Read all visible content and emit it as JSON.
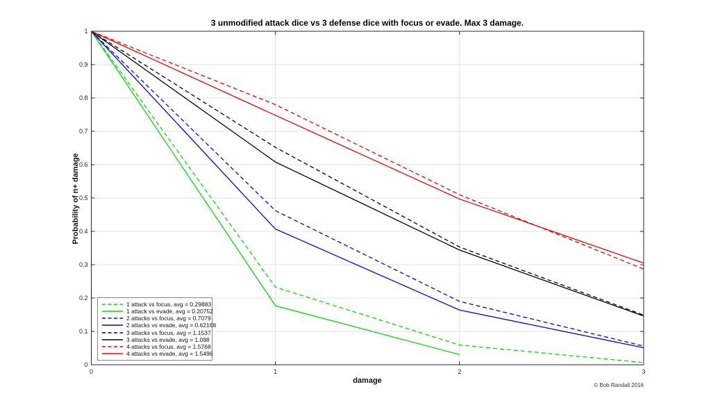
{
  "figure": {
    "copyright": "© Bob Randall 2016",
    "background": "#ffffff"
  },
  "chart_data": {
    "type": "line",
    "title": "3 unmodified attack dice vs 3 defense dice with focus or evade. Max 3 damage.",
    "xlabel": "damage",
    "ylabel": "Probability of n+ damage",
    "x": [
      0,
      1,
      2,
      3
    ],
    "xlim": [
      0,
      3
    ],
    "ylim": [
      0,
      1
    ],
    "xticks": [
      0,
      1,
      2,
      3
    ],
    "yticks": [
      0,
      0.1,
      0.2,
      0.3,
      0.4,
      0.5,
      0.6,
      0.7,
      0.8,
      0.9,
      1
    ],
    "grid": true,
    "legend_position": "bottom-left",
    "axis_color": "#262626",
    "grid_color": "#e0e0e0",
    "series": [
      {
        "name": "1 attack vs focus, avg = 0.29883",
        "color": "#00dd00",
        "style": "dashed",
        "values": [
          1,
          0.2329,
          0.0593,
          0.0066
        ]
      },
      {
        "name": "1 attack vs evade, avg = 0.20752",
        "color": "#00dd00",
        "style": "solid",
        "values": [
          1,
          0.177,
          0.0305,
          null
        ]
      },
      {
        "name": "2 attacks vs focus, avg = 0.7079",
        "color": "#0000ee",
        "style": "dashed",
        "values": [
          1,
          0.462,
          0.19,
          0.056
        ]
      },
      {
        "name": "2 attacks vs evade, avg = 0.62168",
        "color": "#0000ee",
        "style": "solid",
        "values": [
          1,
          0.407,
          0.164,
          0.051
        ]
      },
      {
        "name": "3 attacks vs focus, avg = 1.1537",
        "color": "#000000",
        "style": "dashed",
        "values": [
          1,
          0.652,
          0.353,
          0.149
        ]
      },
      {
        "name": "3 attacks vs evade, avg = 1.098",
        "color": "#000000",
        "style": "solid",
        "values": [
          1,
          0.608,
          0.344,
          0.146
        ]
      },
      {
        "name": "4 attacks vs focus, avg = 1.5768",
        "color": "#ee0000",
        "style": "dashed",
        "values": [
          1,
          0.78,
          0.51,
          0.287
        ]
      },
      {
        "name": "4 attacks vs evade, avg = 1.5496",
        "color": "#ee0000",
        "style": "solid",
        "values": [
          1,
          0.748,
          0.497,
          0.305
        ]
      }
    ]
  }
}
